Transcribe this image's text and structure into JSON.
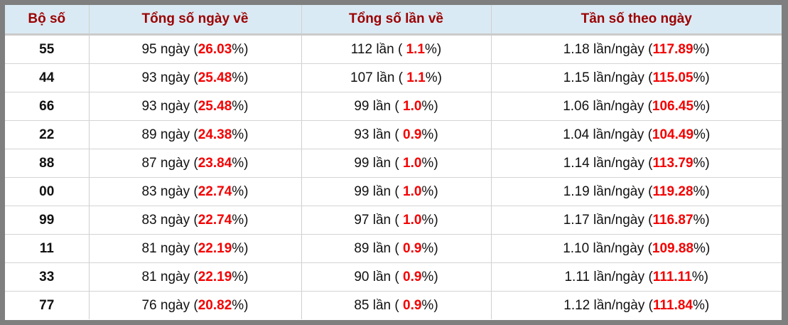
{
  "headers": [
    "Bộ số",
    "Tổng số ngày về",
    "Tổng số lần về",
    "Tần số theo ngày"
  ],
  "units": {
    "day": "ngày",
    "times": "lần",
    "per_day": "lần/ngày"
  },
  "accent_color": "#f40000",
  "rows": [
    {
      "so": "55",
      "ngay": "95",
      "ngay_pct": "26.03",
      "lan": "112",
      "lan_pct": "1.1",
      "tan": "1.18",
      "tan_pct": "117.89"
    },
    {
      "so": "44",
      "ngay": "93",
      "ngay_pct": "25.48",
      "lan": "107",
      "lan_pct": "1.1",
      "tan": "1.15",
      "tan_pct": "115.05"
    },
    {
      "so": "66",
      "ngay": "93",
      "ngay_pct": "25.48",
      "lan": "99",
      "lan_pct": "1.0",
      "tan": "1.06",
      "tan_pct": "106.45"
    },
    {
      "so": "22",
      "ngay": "89",
      "ngay_pct": "24.38",
      "lan": "93",
      "lan_pct": "0.9",
      "tan": "1.04",
      "tan_pct": "104.49"
    },
    {
      "so": "88",
      "ngay": "87",
      "ngay_pct": "23.84",
      "lan": "99",
      "lan_pct": "1.0",
      "tan": "1.14",
      "tan_pct": "113.79"
    },
    {
      "so": "00",
      "ngay": "83",
      "ngay_pct": "22.74",
      "lan": "99",
      "lan_pct": "1.0",
      "tan": "1.19",
      "tan_pct": "119.28"
    },
    {
      "so": "99",
      "ngay": "83",
      "ngay_pct": "22.74",
      "lan": "97",
      "lan_pct": "1.0",
      "tan": "1.17",
      "tan_pct": "116.87"
    },
    {
      "so": "11",
      "ngay": "81",
      "ngay_pct": "22.19",
      "lan": "89",
      "lan_pct": "0.9",
      "tan": "1.10",
      "tan_pct": "109.88"
    },
    {
      "so": "33",
      "ngay": "81",
      "ngay_pct": "22.19",
      "lan": "90",
      "lan_pct": "0.9",
      "tan": "1.11",
      "tan_pct": "111.11"
    },
    {
      "so": "77",
      "ngay": "76",
      "ngay_pct": "20.82",
      "lan": "85",
      "lan_pct": "0.9",
      "tan": "1.12",
      "tan_pct": "111.84"
    }
  ]
}
